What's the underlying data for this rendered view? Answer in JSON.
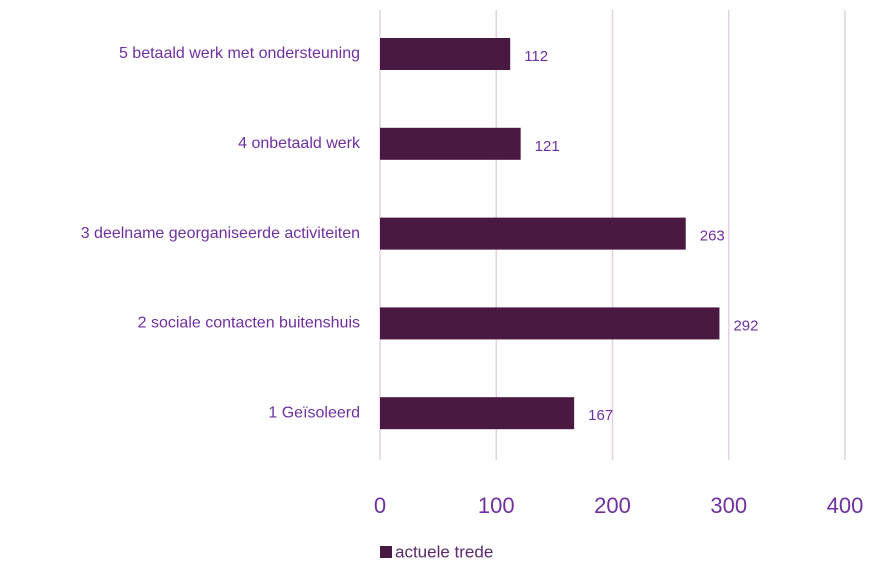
{
  "chart_data": {
    "type": "bar",
    "orientation": "horizontal",
    "categories": [
      "5 betaald werk met ondersteuning",
      "4 onbetaald werk",
      "3 deelname georganiseerde activiteiten",
      "2 sociale contacten buitenshuis",
      "1 Geïsoleerd"
    ],
    "series": [
      {
        "name": "actuele trede",
        "color": "#4a1942",
        "values": [
          112,
          121,
          263,
          292,
          167
        ]
      }
    ],
    "xlim": [
      0,
      400
    ],
    "xticks": [
      0,
      100,
      200,
      300,
      400
    ],
    "grid": true,
    "legend": "bottom"
  }
}
